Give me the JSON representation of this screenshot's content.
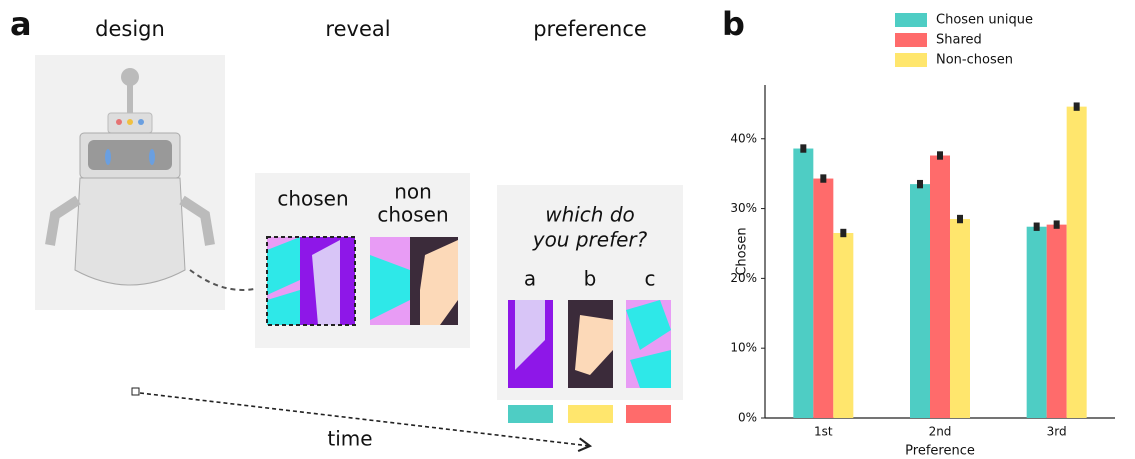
{
  "panel_a": {
    "label": "a",
    "steps": [
      "design",
      "reveal",
      "preference"
    ],
    "reveal": {
      "chosen": "chosen",
      "non_chosen": [
        "non",
        "chosen"
      ]
    },
    "preference": {
      "question": [
        "which do",
        "you prefer?"
      ],
      "options": [
        "a",
        "b",
        "c"
      ]
    },
    "time": "time"
  },
  "chart_data": {
    "type": "bar",
    "panel_label": "b",
    "categories": [
      "1st",
      "2nd",
      "3rd"
    ],
    "series": [
      {
        "name": "Chosen unique",
        "color": "#4ecdc4",
        "values": [
          38.6,
          33.5,
          27.4
        ],
        "errors": [
          0.6,
          0.6,
          0.6
        ]
      },
      {
        "name": "Shared",
        "color": "#ff6b6b",
        "values": [
          34.3,
          37.6,
          27.7
        ],
        "errors": [
          0.6,
          0.6,
          0.6
        ]
      },
      {
        "name": "Non-chosen",
        "color": "#ffe66d",
        "values": [
          26.5,
          28.5,
          44.6
        ],
        "errors": [
          0.6,
          0.6,
          0.6
        ]
      }
    ],
    "ylim": [
      0,
      47.7
    ],
    "yticks": [
      {
        "value": 0,
        "label": "0%"
      },
      {
        "value": 10,
        "label": "10%"
      },
      {
        "value": 20,
        "label": "20%"
      },
      {
        "value": 30,
        "label": "30%"
      },
      {
        "value": 40,
        "label": "40%"
      }
    ],
    "xlabel": "Preference",
    "ylabel": "Chosen",
    "legend": "top"
  }
}
